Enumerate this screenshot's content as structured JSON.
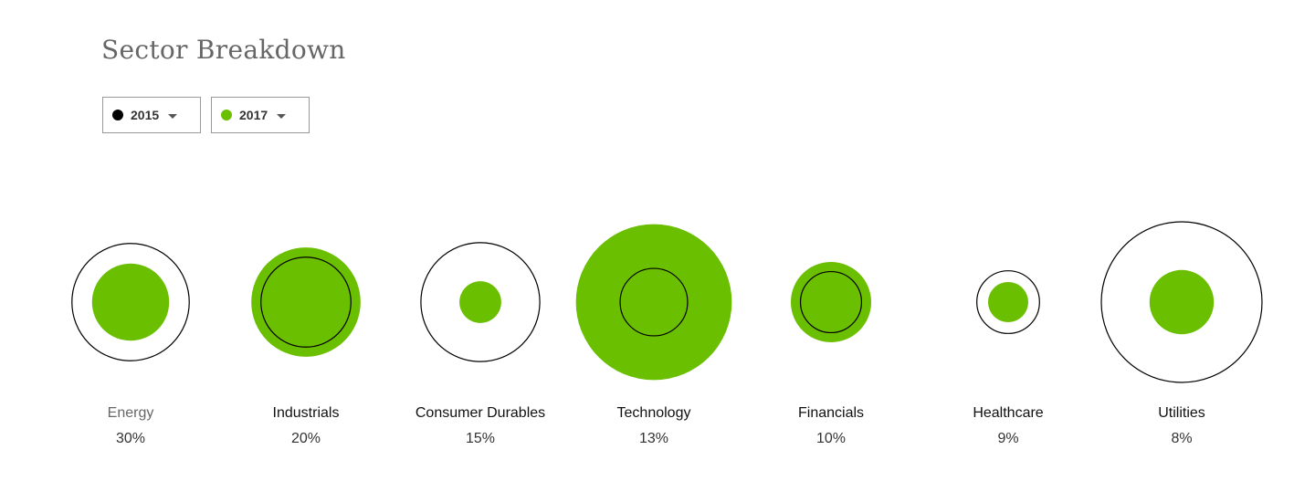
{
  "title": "Sector Breakdown",
  "selectors": [
    {
      "label": "2015",
      "color": "#000000",
      "icon": "caret-down-icon"
    },
    {
      "label": "2017",
      "color": "#6abf00",
      "icon": "caret-down-icon"
    }
  ],
  "chart_data": {
    "type": "bubble",
    "note_encoding": "outline circle = 2015, filled green circle = 2017; sizes relative radius (largest = 1)",
    "categories": [
      "Energy",
      "Industrials",
      "Consumer Durables",
      "Technology",
      "Financials",
      "Healthcare",
      "Utilities"
    ],
    "percent_labels": [
      "30%",
      "20%",
      "15%",
      "13%",
      "10%",
      "9%",
      "8%"
    ],
    "series": [
      {
        "name": "2015",
        "style": "outline",
        "color": "#000000",
        "relative_size": [
          0.73,
          0.56,
          0.74,
          0.42,
          0.38,
          0.39,
          1.0
        ]
      },
      {
        "name": "2017",
        "style": "filled",
        "color": "#6abf00",
        "relative_size": [
          0.48,
          0.68,
          0.26,
          0.97,
          0.5,
          0.25,
          0.4
        ]
      }
    ]
  }
}
